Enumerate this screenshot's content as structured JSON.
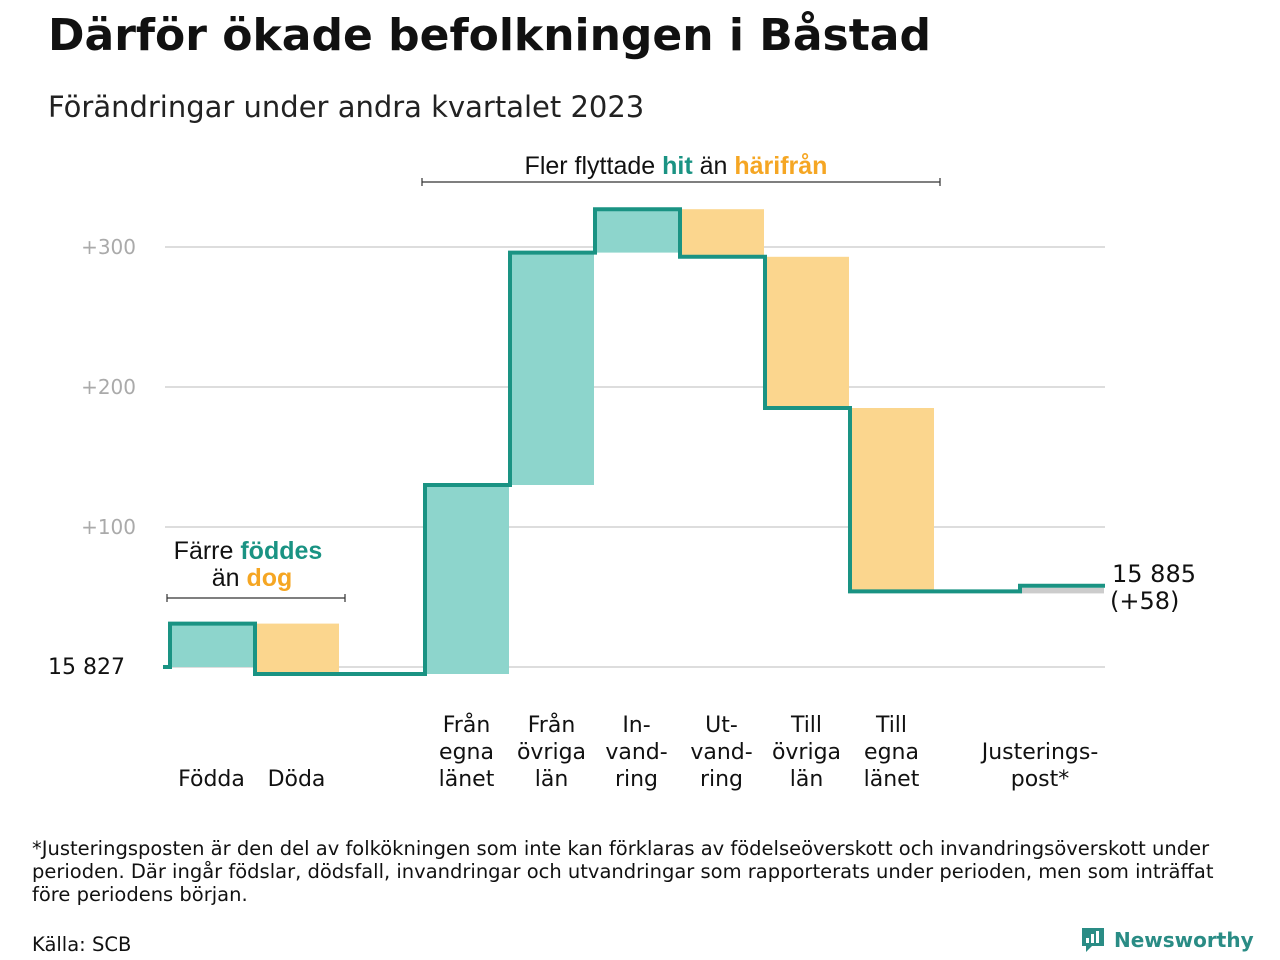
{
  "title": "Därför ökade befolkningen i Båstad",
  "subtitle": "Förändringar under andra kvartalet 2023",
  "footnote": "*Justeringsposten är den del av folkökningen som inte kan förklaras av födelseöverskott och invandringsöverskott under perioden. Där ingår födslar, dödsfall, invandringar och utvandringar som rapporterats under perioden, men som inträffat före periodens början.",
  "source": "Källa: SCB",
  "brand": "Newsworthy",
  "colors": {
    "increase": "#8dd5cc",
    "decrease": "#fbd68e",
    "line": "#1a9383",
    "accent_green": "#1a9383",
    "accent_orange": "#f5a623",
    "grid": "#dddddd",
    "adjust_bar": "#cccccc"
  },
  "chart_data": {
    "type": "waterfall",
    "start_value": 15827,
    "start_label": "15  827",
    "end_label_value": "15 885",
    "end_label_change": "(+58)",
    "ylim": [
      -5,
      335
    ],
    "yticks": [
      100,
      200,
      300
    ],
    "ytick_labels": [
      "+100",
      "+200",
      "+300"
    ],
    "grid": true,
    "groups": [
      [
        0,
        1
      ],
      [
        2,
        3,
        4
      ],
      [
        5,
        6,
        7,
        8
      ]
    ],
    "steps": [
      {
        "label": [
          "Födda"
        ],
        "change": 31,
        "kind": "increase"
      },
      {
        "label": [
          "Döda"
        ],
        "change": -36,
        "kind": "decrease"
      },
      {
        "label": [
          "Från",
          "egna",
          "länet"
        ],
        "change": 135,
        "kind": "increase"
      },
      {
        "label": [
          "Från",
          "övriga",
          "län"
        ],
        "change": 166,
        "kind": "increase"
      },
      {
        "label": [
          "In-",
          "vand-",
          "ring"
        ],
        "change": 31,
        "kind": "increase"
      },
      {
        "label": [
          "Ut-",
          "vand-",
          "ring"
        ],
        "change": -34,
        "kind": "decrease"
      },
      {
        "label": [
          "Till",
          "övriga",
          "län"
        ],
        "change": -108,
        "kind": "decrease"
      },
      {
        "label": [
          "Till",
          "egna",
          "länet"
        ],
        "change": -131,
        "kind": "decrease"
      },
      {
        "label": [
          "Justerings-",
          "post*"
        ],
        "change": 4,
        "kind": "adjustment"
      }
    ],
    "annotations": [
      {
        "parts": [
          {
            "text": "Färre ",
            "color": "normal"
          },
          {
            "text": "föddes",
            "color": "green"
          }
        ],
        "parts2": [
          {
            "text": "än ",
            "color": "normal"
          },
          {
            "text": "dog",
            "color": "orange"
          }
        ]
      },
      {
        "parts": [
          {
            "text": "Fler flyttade ",
            "color": "normal"
          },
          {
            "text": "hit",
            "color": "green"
          },
          {
            "text": " än ",
            "color": "normal"
          },
          {
            "text": "härifrån",
            "color": "orange"
          }
        ]
      }
    ]
  }
}
